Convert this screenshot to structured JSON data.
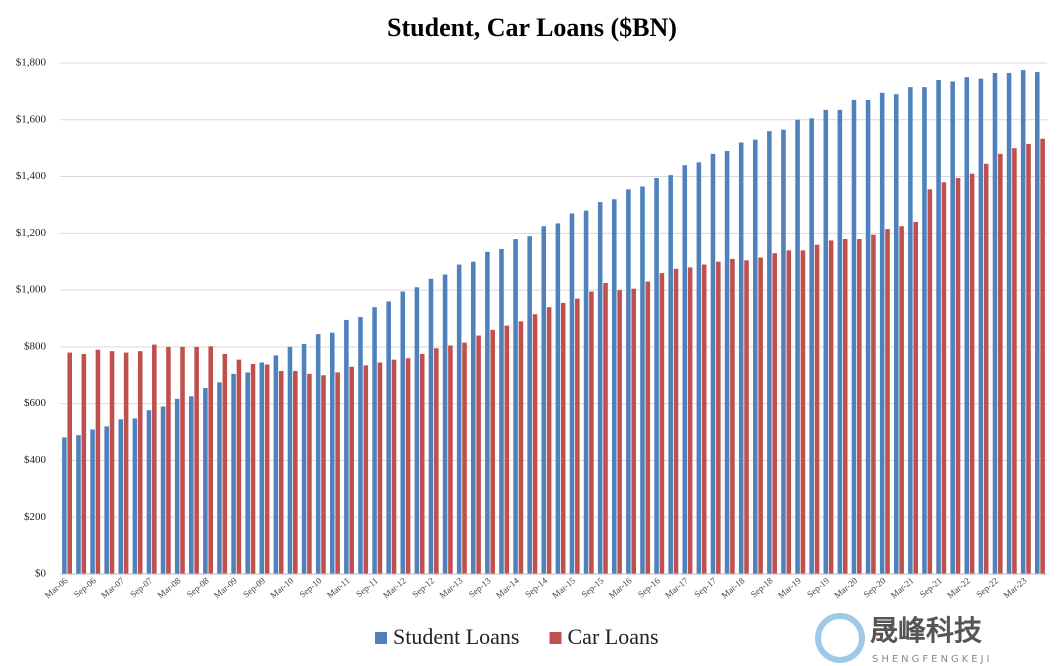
{
  "chart_data": {
    "type": "bar",
    "title": "Student, Car Loans ($BN)",
    "categories": [
      "Mar-06",
      null,
      "Sep-06",
      null,
      "Mar-07",
      null,
      "Sep-07",
      null,
      "Mar-08",
      null,
      "Sep-08",
      null,
      "Mar-09",
      null,
      "Sep-09",
      null,
      "Mar-10",
      null,
      "Sep-10",
      null,
      "Mar-11",
      null,
      "Sep-11",
      null,
      "Mar-12",
      null,
      "Sep-12",
      null,
      "Mar-13",
      null,
      "Sep-13",
      null,
      "Mar-14",
      null,
      "Sep-14",
      null,
      "Mar-15",
      null,
      "Sep-15",
      null,
      "Mar-16",
      null,
      "Sep-16",
      null,
      "Mar-17",
      null,
      "Sep-17",
      null,
      "Mar-18",
      null,
      "Sep-18",
      null,
      "Mar-19",
      null,
      "Sep-19",
      null,
      "Mar-20",
      null,
      "Sep-20",
      null,
      "Mar-21",
      null,
      "Sep-21",
      null,
      "Mar-22",
      null,
      "Sep-22",
      null,
      "Mar-23",
      null
    ],
    "series": [
      {
        "name": "Student Loans",
        "color": "#4f81bd",
        "values": [
          481,
          489,
          509,
          520,
          545,
          548,
          577,
          590,
          617,
          626,
          655,
          675,
          705,
          710,
          745,
          770,
          800,
          810,
          845,
          850,
          895,
          905,
          940,
          960,
          995,
          1010,
          1040,
          1055,
          1090,
          1100,
          1135,
          1145,
          1180,
          1190,
          1225,
          1235,
          1270,
          1280,
          1310,
          1320,
          1355,
          1365,
          1395,
          1405,
          1440,
          1450,
          1480,
          1490,
          1520,
          1530,
          1560,
          1565,
          1600,
          1605,
          1635,
          1635,
          1670,
          1670,
          1695,
          1690,
          1715,
          1715,
          1740,
          1735,
          1750,
          1745,
          1765,
          1765,
          1775,
          1768
        ]
      },
      {
        "name": "Car Loans",
        "color": "#c0504d",
        "values": [
          780,
          775,
          790,
          785,
          780,
          785,
          808,
          800,
          800,
          800,
          802,
          775,
          755,
          740,
          738,
          715,
          715,
          705,
          700,
          710,
          730,
          735,
          745,
          755,
          760,
          775,
          795,
          805,
          815,
          840,
          860,
          875,
          890,
          915,
          940,
          955,
          970,
          995,
          1025,
          1000,
          1005,
          1030,
          1060,
          1075,
          1080,
          1090,
          1100,
          1110,
          1105,
          1115,
          1130,
          1140,
          1140,
          1160,
          1175,
          1180,
          1180,
          1195,
          1215,
          1225,
          1240,
          1355,
          1380,
          1395,
          1410,
          1445,
          1480,
          1500,
          1515,
          1533
        ]
      }
    ],
    "ylim": [
      0,
      1800
    ],
    "yticks": [
      {
        "value": 0,
        "label": "$0"
      },
      {
        "value": 200,
        "label": "$200"
      },
      {
        "value": 400,
        "label": "$400"
      },
      {
        "value": 600,
        "label": "$600"
      },
      {
        "value": 800,
        "label": "$800"
      },
      {
        "value": 1000,
        "label": "$1,000"
      },
      {
        "value": 1200,
        "label": "$1,200"
      },
      {
        "value": 1400,
        "label": "$1,400"
      },
      {
        "value": 1600,
        "label": "$1,600"
      },
      {
        "value": 1800,
        "label": "$1,800"
      }
    ],
    "grid": true,
    "legend": "bottom"
  },
  "watermark": {
    "name": "晟峰科技",
    "pinyin": "SHENGFENGKEJI"
  }
}
